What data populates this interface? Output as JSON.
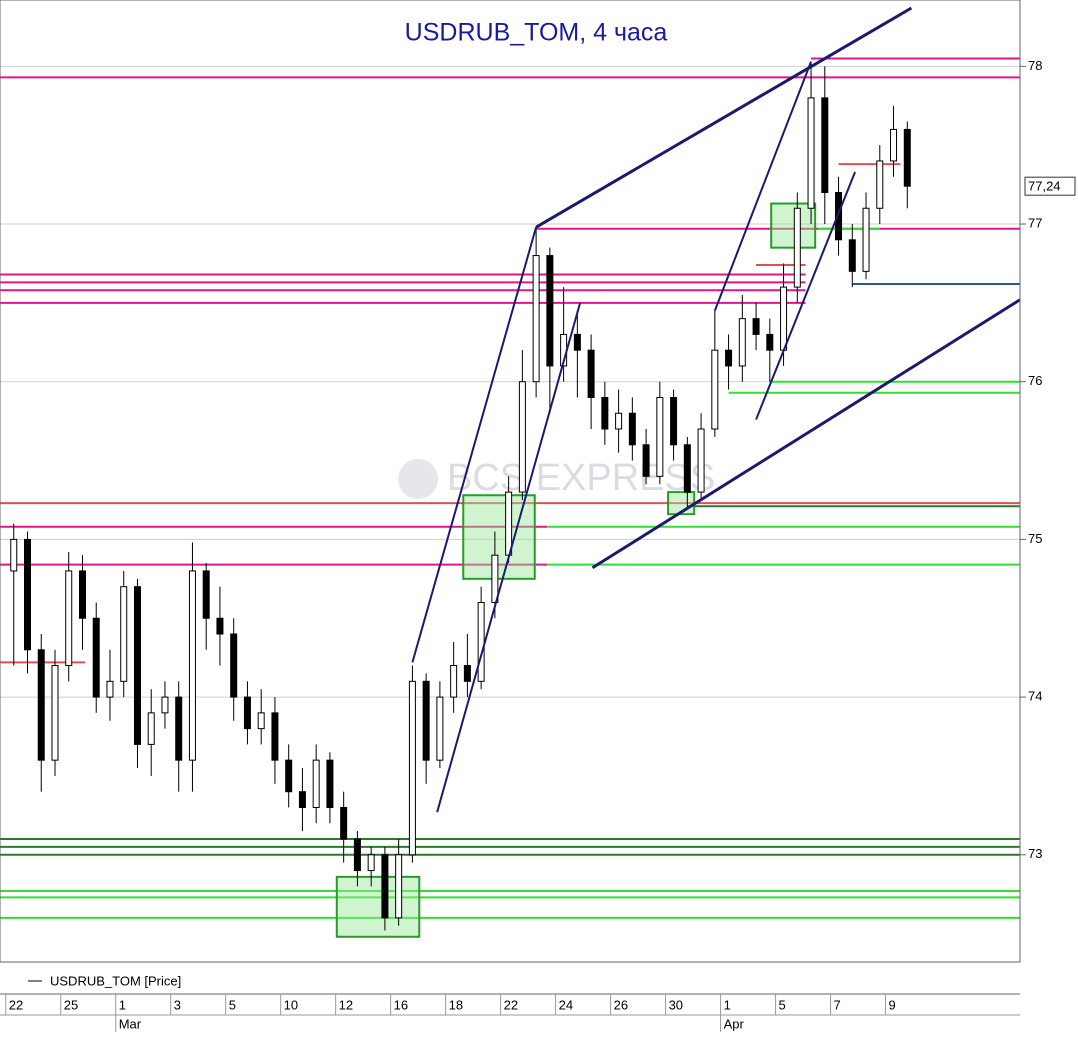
{
  "chart_data": {
    "type": "candlestick",
    "title": "USDRUB_TOM, 4 часа",
    "watermark": "BCS EXPRESS",
    "categories": [
      "22",
      null,
      null,
      null,
      "25",
      null,
      null,
      null,
      "1",
      null,
      null,
      null,
      "3",
      null,
      null,
      null,
      "5",
      null,
      null,
      null,
      "10",
      null,
      null,
      null,
      "12",
      null,
      null,
      null,
      "16",
      null,
      null,
      null,
      "18",
      null,
      null,
      null,
      "22",
      null,
      null,
      null,
      "24",
      null,
      null,
      null,
      "26",
      null,
      null,
      null,
      "30",
      null,
      null,
      null,
      "1",
      null,
      null,
      null,
      "5",
      null,
      null,
      null,
      "7",
      null,
      null,
      null,
      "9",
      null
    ],
    "months": [
      {
        "index": 8,
        "label": "Mar"
      },
      {
        "index": 52,
        "label": "Apr"
      }
    ],
    "series": [
      {
        "name": "USDRUB_TOM [Price]",
        "color": "#000000",
        "open": [
          74.8,
          75.0,
          74.3,
          73.6,
          74.2,
          74.8,
          74.5,
          74.0,
          74.1,
          74.7,
          73.7,
          73.9,
          74.0,
          73.6,
          74.8,
          74.5,
          74.4,
          74.0,
          73.8,
          73.9,
          73.6,
          73.4,
          73.3,
          73.6,
          73.3,
          73.1,
          72.9,
          73.0,
          72.6,
          73.0,
          74.1,
          73.6,
          74.0,
          74.2,
          74.1,
          74.6,
          74.9,
          75.3,
          76.0,
          76.8,
          76.1,
          76.3,
          76.2,
          75.9,
          75.7,
          75.8,
          75.6,
          75.4,
          75.9,
          75.6,
          75.3,
          75.7,
          76.2,
          76.1,
          76.4,
          76.3,
          76.2,
          76.6,
          77.1,
          77.8,
          77.2,
          76.9,
          76.7,
          77.1,
          77.4,
          77.6
        ],
        "high": [
          75.1,
          75.05,
          74.4,
          74.3,
          74.92,
          74.9,
          74.6,
          74.3,
          74.8,
          74.75,
          74.05,
          74.1,
          74.1,
          74.98,
          74.85,
          74.7,
          74.5,
          74.1,
          74.05,
          74.0,
          73.7,
          73.55,
          73.7,
          73.65,
          73.4,
          73.15,
          73.05,
          73.05,
          73.1,
          74.2,
          74.15,
          74.1,
          74.35,
          74.4,
          74.7,
          75.05,
          75.4,
          76.2,
          76.98,
          76.85,
          76.6,
          76.45,
          76.3,
          76.0,
          75.95,
          75.9,
          75.7,
          76.0,
          75.95,
          75.65,
          75.8,
          76.45,
          76.3,
          76.55,
          76.5,
          76.4,
          76.75,
          77.2,
          78.03,
          78.0,
          77.3,
          77.0,
          77.2,
          77.5,
          77.75,
          77.65
        ],
        "low": [
          74.2,
          74.15,
          73.4,
          73.5,
          74.1,
          74.3,
          73.9,
          73.85,
          74.0,
          73.55,
          73.5,
          73.8,
          73.4,
          73.4,
          74.3,
          74.2,
          73.85,
          73.7,
          73.7,
          73.45,
          73.3,
          73.15,
          73.2,
          73.2,
          72.95,
          72.8,
          72.8,
          72.52,
          72.55,
          72.95,
          73.45,
          73.55,
          73.9,
          74.0,
          74.05,
          74.5,
          74.85,
          75.25,
          75.9,
          75.8,
          76.0,
          75.9,
          75.7,
          75.6,
          75.55,
          75.5,
          75.35,
          75.35,
          75.5,
          75.2,
          75.25,
          75.65,
          75.95,
          76.0,
          76.2,
          76.0,
          76.1,
          76.5,
          77.0,
          77.0,
          76.8,
          76.6,
          76.65,
          77.0,
          77.3,
          77.1
        ],
        "close": [
          75.0,
          74.3,
          73.6,
          74.2,
          74.8,
          74.5,
          74.0,
          74.1,
          74.7,
          73.7,
          73.9,
          74.0,
          73.6,
          74.8,
          74.5,
          74.4,
          74.0,
          73.8,
          73.9,
          73.6,
          73.4,
          73.3,
          73.6,
          73.3,
          73.1,
          72.9,
          73.0,
          72.6,
          73.0,
          74.1,
          73.6,
          74.0,
          74.2,
          74.1,
          74.6,
          74.9,
          75.3,
          76.0,
          76.8,
          76.1,
          76.3,
          76.2,
          75.9,
          75.7,
          75.8,
          75.6,
          75.4,
          75.9,
          75.6,
          75.3,
          75.7,
          76.2,
          76.1,
          76.4,
          76.3,
          76.2,
          76.6,
          77.1,
          77.8,
          77.2,
          76.9,
          76.7,
          77.1,
          77.4,
          77.6,
          77.24
        ]
      }
    ],
    "xlim": [
      -1,
      73.2
    ],
    "ylim": [
      72.32,
      78.37
    ],
    "yticks": [
      73,
      74,
      75,
      76,
      77,
      78
    ],
    "grid": true,
    "last_label": {
      "value": 77.24,
      "label": "77,24"
    },
    "hlines": [
      {
        "value": 77.93,
        "color": "#e0158a",
        "from": -1,
        "to": 73.2
      },
      {
        "value": 78.05,
        "color": "#e0158a",
        "from": 58,
        "to": 73.2
      },
      {
        "value": 76.97,
        "color": "#e0158a",
        "from": 38,
        "to": 73.2
      },
      {
        "value": 76.68,
        "color": "#e0158a",
        "from": -1,
        "to": 57.6
      },
      {
        "value": 76.63,
        "color": "#e0158a",
        "from": -1,
        "to": 57.6
      },
      {
        "value": 76.58,
        "color": "#e0158a",
        "from": -1,
        "to": 57.6
      },
      {
        "value": 76.5,
        "color": "#e0158a",
        "from": -1,
        "to": 57.6
      },
      {
        "value": 75.08,
        "color": "#e0158a",
        "from": -1,
        "to": 38.8
      },
      {
        "value": 74.84,
        "color": "#e0158a",
        "from": -1,
        "to": 38.8
      },
      {
        "value": 75.23,
        "color": "#e05050",
        "from": -1,
        "to": 73.2
      },
      {
        "value": 74.22,
        "color": "#e05050",
        "from": -1,
        "to": 5.2
      },
      {
        "value": 76.74,
        "color": "#e05050",
        "from": 54,
        "to": 57.6
      },
      {
        "value": 77.38,
        "color": "#e05050",
        "from": 60,
        "to": 64.5
      },
      {
        "value": 75.08,
        "color": "#33dd33",
        "from": 38.8,
        "to": 73.2
      },
      {
        "value": 74.84,
        "color": "#33dd33",
        "from": 38.8,
        "to": 73.2
      },
      {
        "value": 76.0,
        "color": "#33dd33",
        "from": 55,
        "to": 73.2
      },
      {
        "value": 75.93,
        "color": "#33dd33",
        "from": 52,
        "to": 73.2
      },
      {
        "value": 76.97,
        "color": "#33dd33",
        "from": 58.5,
        "to": 63
      },
      {
        "value": 72.77,
        "color": "#33dd33",
        "from": -1,
        "to": 73.2
      },
      {
        "value": 72.73,
        "color": "#33dd33",
        "from": -1,
        "to": 73.2
      },
      {
        "value": 72.6,
        "color": "#33dd33",
        "from": -1,
        "to": 73.2
      },
      {
        "value": 73.1,
        "color": "#2a7a2a",
        "from": -1,
        "to": 73.2
      },
      {
        "value": 73.05,
        "color": "#2a7a2a",
        "from": -1,
        "to": 73.2
      },
      {
        "value": 73.0,
        "color": "#2a7a2a",
        "from": -1,
        "to": 73.2
      },
      {
        "value": 75.21,
        "color": "#2a7a2a",
        "from": 49,
        "to": 73.2
      },
      {
        "value": 76.62,
        "color": "#2a5a8a",
        "from": 61,
        "to": 73.2
      }
    ],
    "trendlines": [
      {
        "x": [
          38,
          65.3
        ],
        "y": [
          76.98,
          78.37
        ],
        "width": 3
      },
      {
        "x": [
          42.1,
          73.2
        ],
        "y": [
          74.82,
          76.52
        ],
        "width": 3
      },
      {
        "x": [
          29,
          38
        ],
        "y": [
          74.22,
          76.98
        ],
        "width": 2
      },
      {
        "x": [
          30.8,
          41.2
        ],
        "y": [
          73.27,
          76.5
        ],
        "width": 2
      },
      {
        "x": [
          51,
          58
        ],
        "y": [
          76.45,
          78.03
        ],
        "width": 2
      },
      {
        "x": [
          54,
          61.2
        ],
        "y": [
          75.76,
          77.33
        ],
        "width": 2
      }
    ],
    "boxes": [
      {
        "x": [
          23.5,
          29.5
        ],
        "y": [
          72.48,
          72.86
        ]
      },
      {
        "x": [
          32.7,
          37.9
        ],
        "y": [
          74.75,
          75.28
        ]
      },
      {
        "x": [
          47.6,
          49.5
        ],
        "y": [
          75.16,
          75.3
        ]
      },
      {
        "x": [
          55.1,
          58.3
        ],
        "y": [
          76.85,
          77.13
        ]
      }
    ]
  }
}
